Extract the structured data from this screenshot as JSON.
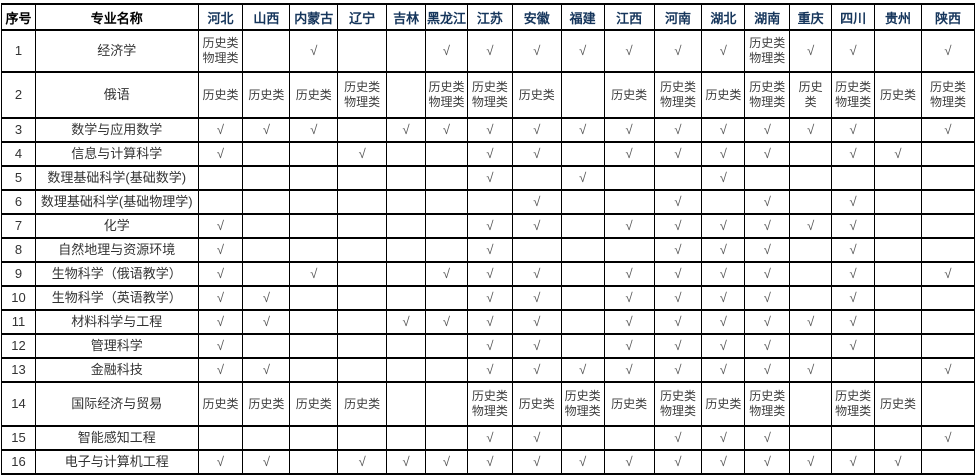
{
  "page": {
    "background_color": "#ffffff",
    "border_color": "#000000",
    "header_text_color": "#16365c",
    "body_text_color": "#3d3d3d",
    "check_color": "#555555"
  },
  "symbols": {
    "check": "√",
    "history_category": "历史类",
    "physics_category": "物理类"
  },
  "table": {
    "columns": [
      "序号",
      "专业名称",
      "河北",
      "山西",
      "内蒙古",
      "辽宁",
      "吉林",
      "黑龙江",
      "江苏",
      "安徽",
      "福建",
      "江西",
      "河南",
      "湖北",
      "湖南",
      "重庆",
      "四川",
      "贵州",
      "陕西"
    ],
    "rows": [
      {
        "no": "1",
        "major": "经济学",
        "cells": [
          "历史类\n物理类",
          "",
          "√",
          "",
          "",
          "√",
          "√",
          "√",
          "√",
          "√",
          "√",
          "√",
          "历史类\n物理类",
          "√",
          "√",
          "",
          "√"
        ]
      },
      {
        "no": "2",
        "major": "俄语",
        "cells": [
          "历史类",
          "历史类",
          "历史类",
          "历史类\n物理类",
          "",
          "历史类\n物理类",
          "历史类\n物理类",
          "历史类",
          "",
          "历史类",
          "历史类\n物理类",
          "历史类",
          "历史类\n物理类",
          "历史\n类",
          "历史类\n物理类",
          "历史类",
          "历史类\n物理类"
        ]
      },
      {
        "no": "3",
        "major": "数学与应用数学",
        "cells": [
          "√",
          "√",
          "√",
          "",
          "√",
          "√",
          "√",
          "√",
          "√",
          "√",
          "√",
          "√",
          "√",
          "√",
          "√",
          "",
          "√"
        ]
      },
      {
        "no": "4",
        "major": "信息与计算科学",
        "cells": [
          "√",
          "",
          "",
          "√",
          "",
          "",
          "√",
          "√",
          "",
          "√",
          "√",
          "√",
          "√",
          "",
          "√",
          "√",
          ""
        ]
      },
      {
        "no": "5",
        "major": "数理基础科学(基础数学)",
        "cells": [
          "",
          "",
          "",
          "",
          "",
          "",
          "√",
          "",
          "√",
          "",
          "",
          "√",
          "",
          "",
          "",
          "",
          ""
        ]
      },
      {
        "no": "6",
        "major": "数理基础科学(基础物理学)",
        "cells": [
          "",
          "",
          "",
          "",
          "",
          "",
          "",
          "√",
          "",
          "",
          "√",
          "",
          "√",
          "",
          "√",
          "",
          ""
        ]
      },
      {
        "no": "7",
        "major": "化学",
        "cells": [
          "√",
          "",
          "",
          "",
          "",
          "",
          "√",
          "√",
          "",
          "√",
          "√",
          "√",
          "√",
          "√",
          "√",
          "",
          ""
        ]
      },
      {
        "no": "8",
        "major": "自然地理与资源环境",
        "cells": [
          "√",
          "",
          "",
          "",
          "",
          "",
          "√",
          "",
          "",
          "",
          "√",
          "√",
          "√",
          "",
          "√",
          "",
          ""
        ]
      },
      {
        "no": "9",
        "major": "生物科学（俄语教学）",
        "cells": [
          "√",
          "",
          "√",
          "",
          "",
          "√",
          "√",
          "√",
          "",
          "√",
          "√",
          "√",
          "√",
          "",
          "√",
          "",
          "√"
        ]
      },
      {
        "no": "10",
        "major": "生物科学（英语教学）",
        "cells": [
          "√",
          "√",
          "",
          "",
          "",
          "",
          "√",
          "√",
          "",
          "√",
          "√",
          "√",
          "√",
          "",
          "√",
          "",
          ""
        ]
      },
      {
        "no": "11",
        "major": "材料科学与工程",
        "cells": [
          "√",
          "√",
          "",
          "",
          "√",
          "√",
          "√",
          "√",
          "",
          "√",
          "√",
          "√",
          "√",
          "√",
          "√",
          "",
          ""
        ]
      },
      {
        "no": "12",
        "major": "管理科学",
        "cells": [
          "√",
          "",
          "",
          "",
          "",
          "",
          "√",
          "√",
          "",
          "√",
          "√",
          "√",
          "√",
          "",
          "√",
          "",
          ""
        ]
      },
      {
        "no": "13",
        "major": "金融科技",
        "cells": [
          "√",
          "√",
          "",
          "",
          "",
          "",
          "√",
          "√",
          "√",
          "√",
          "√",
          "√",
          "√",
          "√",
          "",
          "",
          "√"
        ]
      },
      {
        "no": "14",
        "major": "国际经济与贸易",
        "cells": [
          "历史类",
          "历史类",
          "历史类",
          "历史类",
          "",
          "",
          "历史类\n物理类",
          "历史类",
          "历史类\n物理类",
          "历史类",
          "历史类\n物理类",
          "历史类",
          "历史类\n物理类",
          "",
          "历史类\n物理类",
          "历史类",
          ""
        ]
      },
      {
        "no": "15",
        "major": "智能感知工程",
        "cells": [
          "",
          "",
          "",
          "",
          "",
          "",
          "√",
          "√",
          "",
          "",
          "√",
          "√",
          "√",
          "",
          "",
          "",
          "√"
        ]
      },
      {
        "no": "16",
        "major": "电子与计算机工程",
        "cells": [
          "√",
          "√",
          "",
          "√",
          "√",
          "√",
          "√",
          "√",
          "√",
          "√",
          "√",
          "√",
          "√",
          "√",
          "√",
          "√",
          ""
        ]
      }
    ]
  }
}
